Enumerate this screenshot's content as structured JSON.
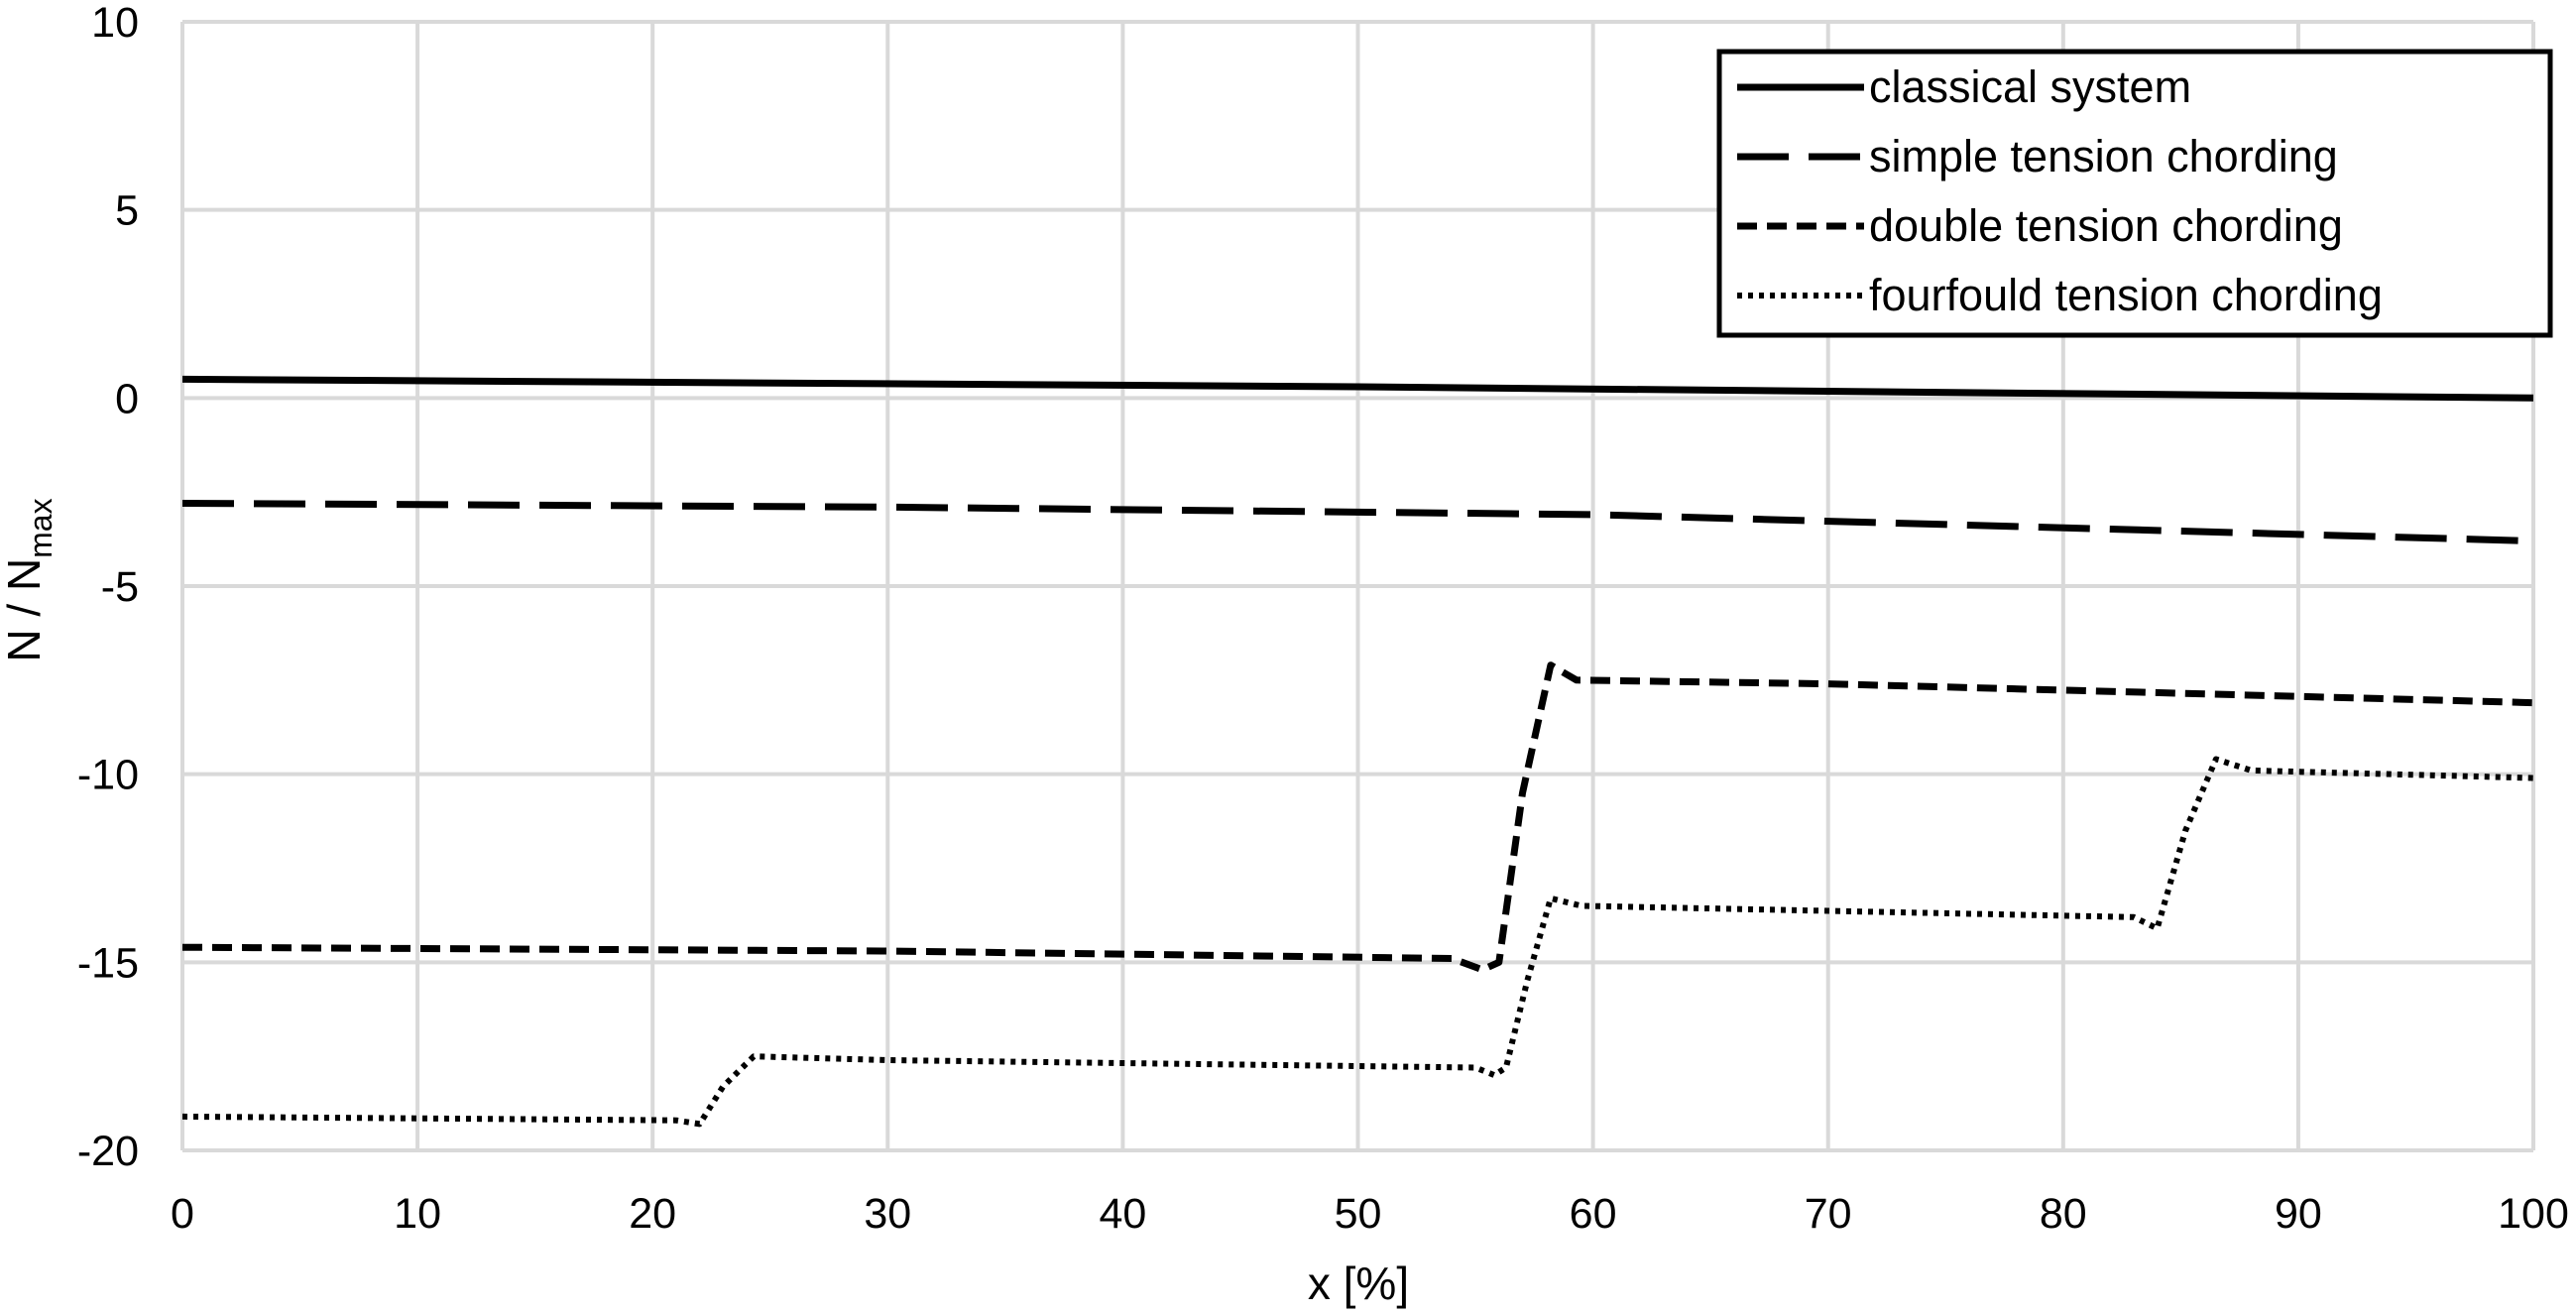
{
  "chart_data": {
    "type": "line",
    "xlabel": "x [%]",
    "ylabel": {
      "main": "N / N",
      "sub": "max"
    },
    "xlim": [
      0,
      100
    ],
    "ylim": [
      -20,
      10
    ],
    "x_ticks": [
      "0",
      "10",
      "20",
      "30",
      "40",
      "50",
      "60",
      "70",
      "80",
      "90",
      "100"
    ],
    "y_ticks": [
      "10",
      "5",
      "0",
      "-5",
      "-10",
      "-15",
      "-20"
    ],
    "grid": true,
    "legend": {
      "position": "top-right"
    },
    "series": [
      {
        "name": "classical system",
        "style": "solid",
        "points": [
          [
            0,
            0.5
          ],
          [
            50,
            0.3
          ],
          [
            100,
            0.0
          ]
        ]
      },
      {
        "name": "simple tension chording",
        "style": "long-dash",
        "points": [
          [
            0,
            -2.8
          ],
          [
            30,
            -2.9
          ],
          [
            60,
            -3.1
          ],
          [
            100,
            -3.8
          ]
        ]
      },
      {
        "name": "double tension chording",
        "style": "dash",
        "points": [
          [
            0,
            -14.6
          ],
          [
            30,
            -14.7
          ],
          [
            54,
            -14.9
          ],
          [
            55.3,
            -15.2
          ],
          [
            56,
            -15.0
          ],
          [
            57,
            -10.5
          ],
          [
            58.2,
            -7.1
          ],
          [
            59.3,
            -7.5
          ],
          [
            70,
            -7.6
          ],
          [
            100,
            -8.1
          ]
        ]
      },
      {
        "name": "fourfould tension chording",
        "style": "dot",
        "points": [
          [
            0,
            -19.1
          ],
          [
            21,
            -19.2
          ],
          [
            22,
            -19.3
          ],
          [
            23,
            -18.3
          ],
          [
            24.3,
            -17.5
          ],
          [
            30,
            -17.6
          ],
          [
            55,
            -17.8
          ],
          [
            55.8,
            -18.0
          ],
          [
            56.3,
            -17.8
          ],
          [
            57.2,
            -15.5
          ],
          [
            58.2,
            -13.3
          ],
          [
            59.5,
            -13.5
          ],
          [
            83,
            -13.8
          ],
          [
            84,
            -14.1
          ],
          [
            85.2,
            -11.5
          ],
          [
            86.5,
            -9.6
          ],
          [
            88,
            -9.9
          ],
          [
            100,
            -10.1
          ]
        ]
      }
    ]
  }
}
